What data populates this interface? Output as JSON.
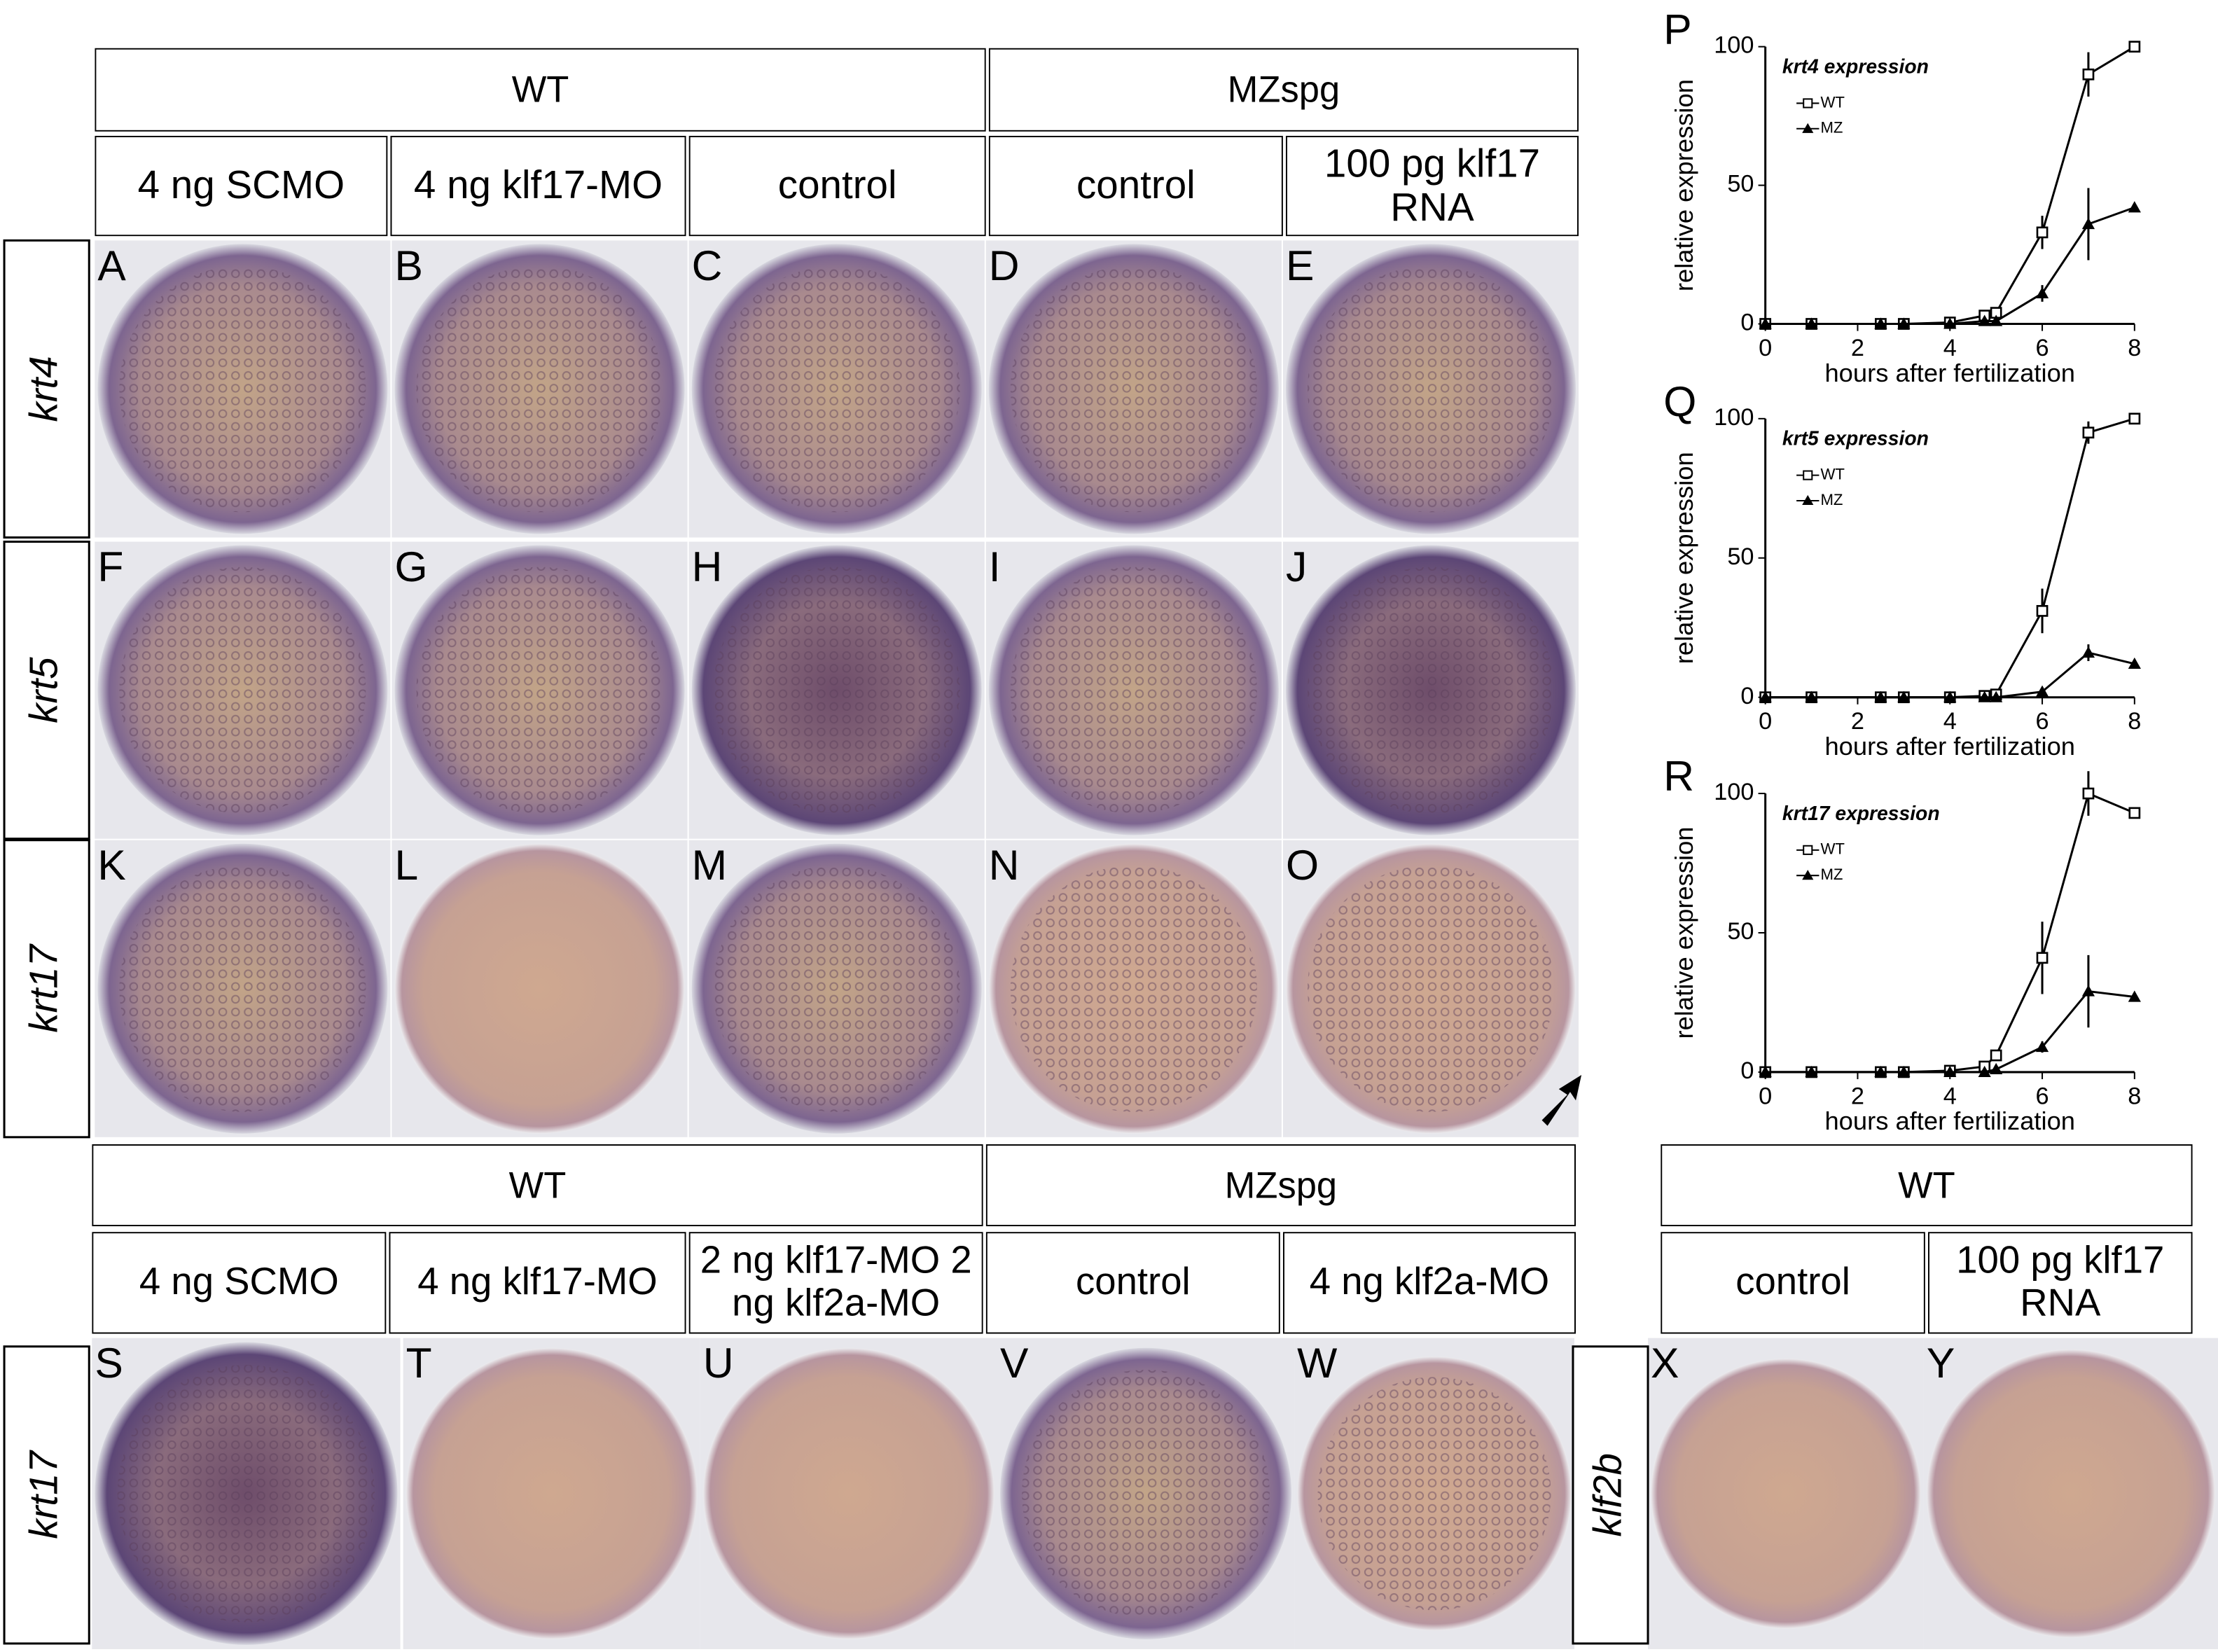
{
  "headers_top": {
    "groups": [
      "WT",
      "MZspg"
    ],
    "conditions": [
      "4 ng SCMO",
      "4 ng klf17-MO",
      "control",
      "control",
      "100 pg klf17 RNA"
    ]
  },
  "row_labels_top": [
    "krt4",
    "krt5",
    "krt17"
  ],
  "panel_letters_top": [
    "A",
    "B",
    "C",
    "D",
    "E",
    "F",
    "G",
    "H",
    "I",
    "J",
    "K",
    "L",
    "M",
    "N",
    "O"
  ],
  "headers_bottom": {
    "groups": [
      "WT",
      "MZspg",
      "WT"
    ],
    "conditions": [
      "4 ng SCMO",
      "4 ng klf17-MO",
      "2 ng klf17-MO 2 ng klf2a-MO",
      "control",
      "4 ng klf2a-MO",
      "control",
      "100 pg klf17 RNA"
    ]
  },
  "row_labels_bottom": [
    "krt17",
    "klf2b"
  ],
  "panel_letters_bottom": [
    "S",
    "T",
    "U",
    "V",
    "W",
    "X",
    "Y"
  ],
  "chart_data": [
    {
      "type": "line",
      "letter": "P",
      "title": "krt4 expression",
      "x_label": "hours after fertilization",
      "y_label": "relative expression",
      "x": [
        0,
        1,
        2.5,
        3,
        4,
        4.75,
        5,
        6,
        7,
        8
      ],
      "xlim": [
        0,
        8
      ],
      "ylim": [
        0,
        100
      ],
      "xticks": [
        0,
        2,
        4,
        6,
        8
      ],
      "yticks": [
        0,
        50,
        100
      ],
      "series": [
        {
          "name": "WT",
          "color": "#000000",
          "marker": "square",
          "values": [
            0,
            0,
            0,
            0,
            0.5,
            3,
            4,
            33,
            90,
            100
          ],
          "errors": [
            0,
            0,
            0,
            0,
            0,
            1,
            1,
            6,
            8,
            0
          ]
        },
        {
          "name": "MZ",
          "color": "#000000",
          "marker": "triangle",
          "values": [
            0,
            0,
            0,
            0,
            0,
            1,
            1,
            11,
            36,
            42
          ],
          "errors": [
            0,
            0,
            0,
            0,
            0,
            0,
            0,
            3,
            13,
            0
          ]
        }
      ]
    },
    {
      "type": "line",
      "letter": "Q",
      "title": "krt5 expression",
      "x_label": "hours after fertilization",
      "y_label": "relative expression",
      "x": [
        0,
        1,
        2.5,
        3,
        4,
        4.75,
        5,
        6,
        7,
        8
      ],
      "xlim": [
        0,
        8
      ],
      "ylim": [
        0,
        100
      ],
      "xticks": [
        0,
        2,
        4,
        6,
        8
      ],
      "yticks": [
        0,
        50,
        100
      ],
      "series": [
        {
          "name": "WT",
          "color": "#000000",
          "marker": "square",
          "values": [
            0,
            0,
            0,
            0,
            0,
            0.5,
            1,
            31,
            95,
            100
          ],
          "errors": [
            0,
            0,
            0,
            0,
            0,
            0,
            0,
            8,
            4,
            0
          ]
        },
        {
          "name": "MZ",
          "color": "#000000",
          "marker": "triangle",
          "values": [
            0,
            0,
            0,
            0,
            0,
            0,
            0,
            2,
            16,
            12
          ],
          "errors": [
            0,
            0,
            0,
            0,
            0,
            0,
            0,
            0,
            3,
            0
          ]
        }
      ]
    },
    {
      "type": "line",
      "letter": "R",
      "title": "krt17 expression",
      "x_label": "hours after fertilization",
      "y_label": "relative expression",
      "x": [
        0,
        1,
        2.5,
        3,
        4,
        4.75,
        5,
        6,
        7,
        8
      ],
      "xlim": [
        0,
        8
      ],
      "ylim": [
        0,
        100
      ],
      "xticks": [
        0,
        2,
        4,
        6,
        8
      ],
      "yticks": [
        0,
        50,
        100
      ],
      "series": [
        {
          "name": "WT",
          "color": "#000000",
          "marker": "square",
          "values": [
            0,
            0,
            0,
            0,
            0.5,
            2,
            6,
            41,
            100,
            93
          ],
          "errors": [
            0,
            0,
            0,
            0,
            0,
            1,
            1,
            13,
            8,
            0
          ]
        },
        {
          "name": "MZ",
          "color": "#000000",
          "marker": "triangle",
          "values": [
            0,
            0,
            0,
            0,
            0,
            0,
            1,
            9,
            29,
            27
          ],
          "errors": [
            0,
            0,
            0,
            0,
            0,
            0,
            0,
            2,
            13,
            0
          ]
        }
      ]
    }
  ]
}
